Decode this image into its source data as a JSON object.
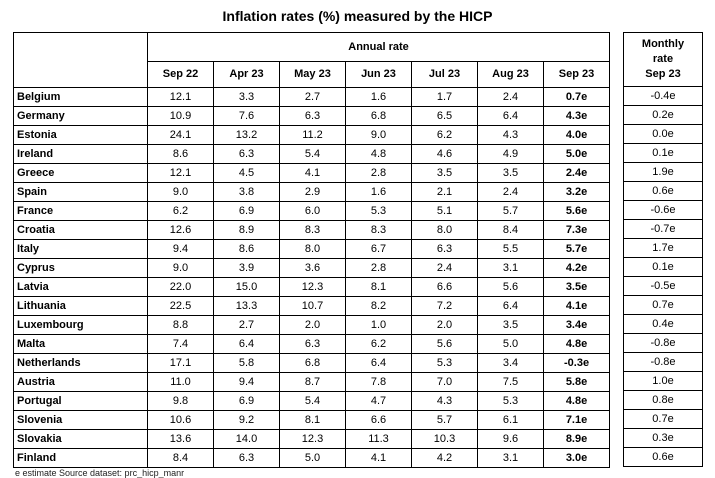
{
  "title": "Inflation rates (%) measured by the HICP",
  "annual_header": "Annual rate",
  "monthly_header": [
    "Monthly",
    "rate"
  ],
  "monthly_col": "Sep 23",
  "columns": [
    "Sep 22",
    "Apr 23",
    "May 23",
    "Jun 23",
    "Jul 23",
    "Aug 23",
    "Sep 23"
  ],
  "rows": [
    {
      "country": "Belgium",
      "values": [
        "12.1",
        "3.3",
        "2.7",
        "1.6",
        "1.7",
        "2.4",
        "0.7e"
      ],
      "monthly": "-0.4e"
    },
    {
      "country": "Germany",
      "values": [
        "10.9",
        "7.6",
        "6.3",
        "6.8",
        "6.5",
        "6.4",
        "4.3e"
      ],
      "monthly": "0.2e"
    },
    {
      "country": "Estonia",
      "values": [
        "24.1",
        "13.2",
        "11.2",
        "9.0",
        "6.2",
        "4.3",
        "4.0e"
      ],
      "monthly": "0.0e"
    },
    {
      "country": "Ireland",
      "values": [
        "8.6",
        "6.3",
        "5.4",
        "4.8",
        "4.6",
        "4.9",
        "5.0e"
      ],
      "monthly": "0.1e"
    },
    {
      "country": "Greece",
      "values": [
        "12.1",
        "4.5",
        "4.1",
        "2.8",
        "3.5",
        "3.5",
        "2.4e"
      ],
      "monthly": "1.9e"
    },
    {
      "country": "Spain",
      "values": [
        "9.0",
        "3.8",
        "2.9",
        "1.6",
        "2.1",
        "2.4",
        "3.2e"
      ],
      "monthly": "0.6e"
    },
    {
      "country": "France",
      "values": [
        "6.2",
        "6.9",
        "6.0",
        "5.3",
        "5.1",
        "5.7",
        "5.6e"
      ],
      "monthly": "-0.6e"
    },
    {
      "country": "Croatia",
      "values": [
        "12.6",
        "8.9",
        "8.3",
        "8.3",
        "8.0",
        "8.4",
        "7.3e"
      ],
      "monthly": "-0.7e"
    },
    {
      "country": "Italy",
      "values": [
        "9.4",
        "8.6",
        "8.0",
        "6.7",
        "6.3",
        "5.5",
        "5.7e"
      ],
      "monthly": "1.7e"
    },
    {
      "country": "Cyprus",
      "values": [
        "9.0",
        "3.9",
        "3.6",
        "2.8",
        "2.4",
        "3.1",
        "4.2e"
      ],
      "monthly": "0.1e"
    },
    {
      "country": "Latvia",
      "values": [
        "22.0",
        "15.0",
        "12.3",
        "8.1",
        "6.6",
        "5.6",
        "3.5e"
      ],
      "monthly": "-0.5e"
    },
    {
      "country": "Lithuania",
      "values": [
        "22.5",
        "13.3",
        "10.7",
        "8.2",
        "7.2",
        "6.4",
        "4.1e"
      ],
      "monthly": "0.7e"
    },
    {
      "country": "Luxembourg",
      "values": [
        "8.8",
        "2.7",
        "2.0",
        "1.0",
        "2.0",
        "3.5",
        "3.4e"
      ],
      "monthly": "0.4e"
    },
    {
      "country": "Malta",
      "values": [
        "7.4",
        "6.4",
        "6.3",
        "6.2",
        "5.6",
        "5.0",
        "4.8e"
      ],
      "monthly": "-0.8e"
    },
    {
      "country": "Netherlands",
      "values": [
        "17.1",
        "5.8",
        "6.8",
        "6.4",
        "5.3",
        "3.4",
        "-0.3e"
      ],
      "monthly": "-0.8e"
    },
    {
      "country": "Austria",
      "values": [
        "11.0",
        "9.4",
        "8.7",
        "7.8",
        "7.0",
        "7.5",
        "5.8e"
      ],
      "monthly": "1.0e"
    },
    {
      "country": "Portugal",
      "values": [
        "9.8",
        "6.9",
        "5.4",
        "4.7",
        "4.3",
        "5.3",
        "4.8e"
      ],
      "monthly": "0.8e"
    },
    {
      "country": "Slovenia",
      "values": [
        "10.6",
        "9.2",
        "8.1",
        "6.6",
        "5.7",
        "6.1",
        "7.1e"
      ],
      "monthly": "0.7e"
    },
    {
      "country": "Slovakia",
      "values": [
        "13.6",
        "14.0",
        "12.3",
        "11.3",
        "10.3",
        "9.6",
        "8.9e"
      ],
      "monthly": "0.3e"
    },
    {
      "country": "Finland",
      "values": [
        "8.4",
        "6.3",
        "5.0",
        "4.1",
        "4.2",
        "3.1",
        "3.0e"
      ],
      "monthly": "0.6e"
    }
  ],
  "footnote": "e estimate    Source dataset: prc_hicp_manr"
}
